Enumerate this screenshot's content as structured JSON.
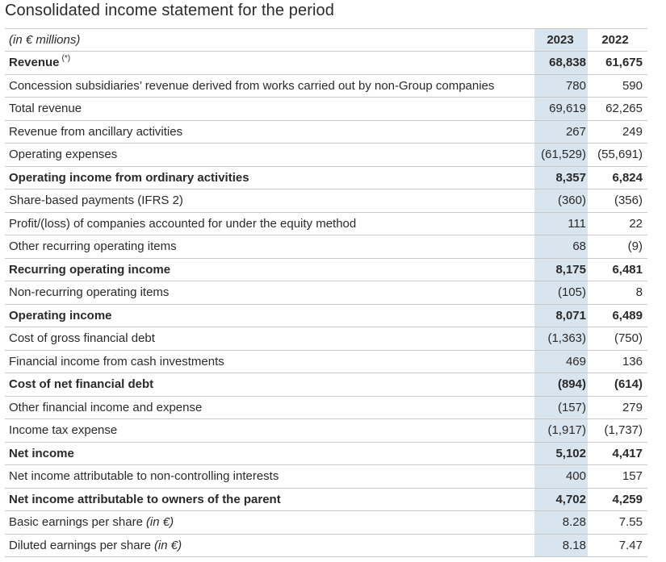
{
  "title": "Consolidated income statement for the period",
  "header": {
    "label": "(in € millions)",
    "col_2023": "2023",
    "col_2022": "2022"
  },
  "rows": [
    {
      "label": "Revenue",
      "note": "(*)",
      "v2023": "68,838",
      "v2022": "61,675",
      "bold": true
    },
    {
      "label": "Concession subsidiaries’ revenue derived from works carried out by non-Group companies",
      "v2023": "780",
      "v2022": "590",
      "bold": false
    },
    {
      "label": "Total revenue",
      "v2023": "69,619",
      "v2022": "62,265",
      "bold": false
    },
    {
      "label": "Revenue from ancillary activities",
      "v2023": "267",
      "v2022": "249",
      "bold": false
    },
    {
      "label": "Operating expenses",
      "v2023": "(61,529)",
      "v2022": "(55,691)",
      "bold": false
    },
    {
      "label": "Operating income from ordinary activities",
      "v2023": "8,357",
      "v2022": "6,824",
      "bold": true
    },
    {
      "label": "Share-based payments (IFRS 2)",
      "v2023": "(360)",
      "v2022": "(356)",
      "bold": false
    },
    {
      "label": "Profit/(loss) of companies accounted for under the equity method",
      "v2023": "111",
      "v2022": "22",
      "bold": false
    },
    {
      "label": "Other recurring operating items",
      "v2023": "68",
      "v2022": "(9)",
      "bold": false
    },
    {
      "label": "Recurring operating income",
      "v2023": "8,175",
      "v2022": "6,481",
      "bold": true
    },
    {
      "label": "Non-recurring operating items",
      "v2023": "(105)",
      "v2022": "8",
      "bold": false
    },
    {
      "label": "Operating income",
      "v2023": "8,071",
      "v2022": "6,489",
      "bold": true
    },
    {
      "label": "Cost of gross financial debt",
      "v2023": "(1,363)",
      "v2022": "(750)",
      "bold": false
    },
    {
      "label": "Financial income from cash investments",
      "v2023": "469",
      "v2022": "136",
      "bold": false
    },
    {
      "label": "Cost of net financial debt",
      "v2023": "(894)",
      "v2022": "(614)",
      "bold": true
    },
    {
      "label": "Other financial income and expense",
      "v2023": "(157)",
      "v2022": "279",
      "bold": false
    },
    {
      "label": "Income tax expense",
      "v2023": "(1,917)",
      "v2022": "(1,737)",
      "bold": false
    },
    {
      "label": "Net income",
      "v2023": "5,102",
      "v2022": "4,417",
      "bold": true
    },
    {
      "label": "Net income attributable to non-controlling interests",
      "v2023": "400",
      "v2022": "157",
      "bold": false
    },
    {
      "label": "Net income attributable to owners of the parent",
      "v2023": "4,702",
      "v2022": "4,259",
      "bold": true
    },
    {
      "label": "Basic earnings per share",
      "unit": "(in €)",
      "v2023": "8.28",
      "v2022": "7.55",
      "bold": false
    },
    {
      "label": "Diluted earnings per share",
      "unit": "(in €)",
      "v2023": "8.18",
      "v2022": "7.47",
      "bold": false
    }
  ],
  "colors": {
    "highlight_column": "#d8e4ee",
    "rule": "#c9c9c9",
    "text": "#2a2a2a"
  }
}
